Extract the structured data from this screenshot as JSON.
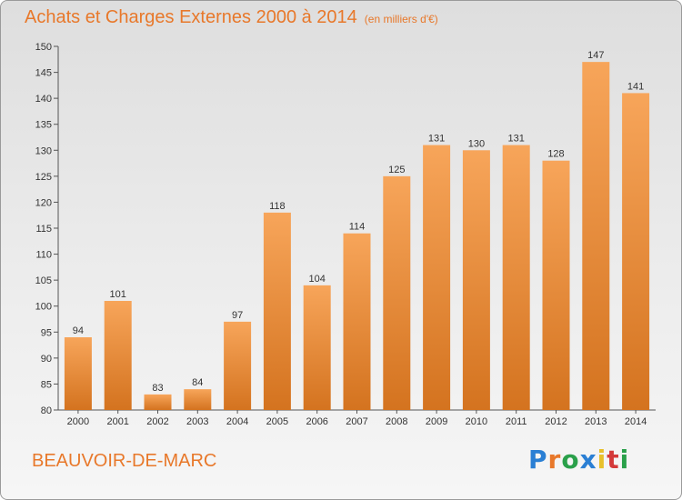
{
  "header": {
    "title": "Achats et Charges Externes 2000 à 2014",
    "subtitle": "(en milliers d'€)"
  },
  "footer": {
    "city": "BEAUVOIR-DE-MARC",
    "logo_text": "Proxiti"
  },
  "colors": {
    "accent": "#e8782a",
    "bar_top": "#f7a55a",
    "bar_bottom": "#d4731f"
  },
  "chart_data": {
    "type": "bar",
    "title": "Achats et Charges Externes 2000 à 2014",
    "subtitle": "(en milliers d'€)",
    "xlabel": "",
    "ylabel": "",
    "categories": [
      "2000",
      "2001",
      "2002",
      "2003",
      "2004",
      "2005",
      "2006",
      "2007",
      "2008",
      "2009",
      "2010",
      "2011",
      "2012",
      "2013",
      "2014"
    ],
    "values": [
      94,
      101,
      83,
      84,
      97,
      118,
      104,
      114,
      125,
      131,
      130,
      131,
      128,
      147,
      141
    ],
    "ylim": [
      80,
      150
    ],
    "yticks": [
      80,
      85,
      90,
      95,
      100,
      105,
      110,
      115,
      120,
      125,
      130,
      135,
      140,
      145,
      150
    ],
    "grid": false,
    "data_labels": true
  }
}
